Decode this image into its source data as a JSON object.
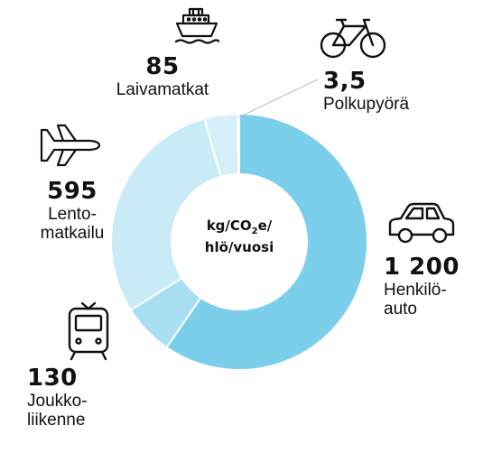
{
  "chart_data": {
    "type": "pie",
    "center_label": {
      "line1_a": "kg/CO",
      "line1_sub": "2",
      "line1_b": "e/",
      "line2": "hlö/vuosi"
    },
    "slices": [
      {
        "value_label": "1 200",
        "value": 1200,
        "name_lines": [
          "Henkilö-",
          "auto"
        ],
        "color": "#7ccfea",
        "icon": "car-icon"
      },
      {
        "value_label": "130",
        "value": 130,
        "name_lines": [
          "Joukko-",
          "liikenne"
        ],
        "color": "#a8def1",
        "icon": "train-icon"
      },
      {
        "value_label": "595",
        "value": 595,
        "name_lines": [
          "Lento-",
          "matkailu"
        ],
        "color": "#c9ebf7",
        "icon": "airplane-icon"
      },
      {
        "value_label": "85",
        "value": 85,
        "name_lines": [
          "Laivamatkat"
        ],
        "color": "#d6f0f9",
        "icon": "ship-icon"
      },
      {
        "value_label": "3,5",
        "value": 3.5,
        "name_lines": [
          "Polkupyörä"
        ],
        "color": "#c3e9f5",
        "icon": "bicycle-icon"
      }
    ]
  }
}
